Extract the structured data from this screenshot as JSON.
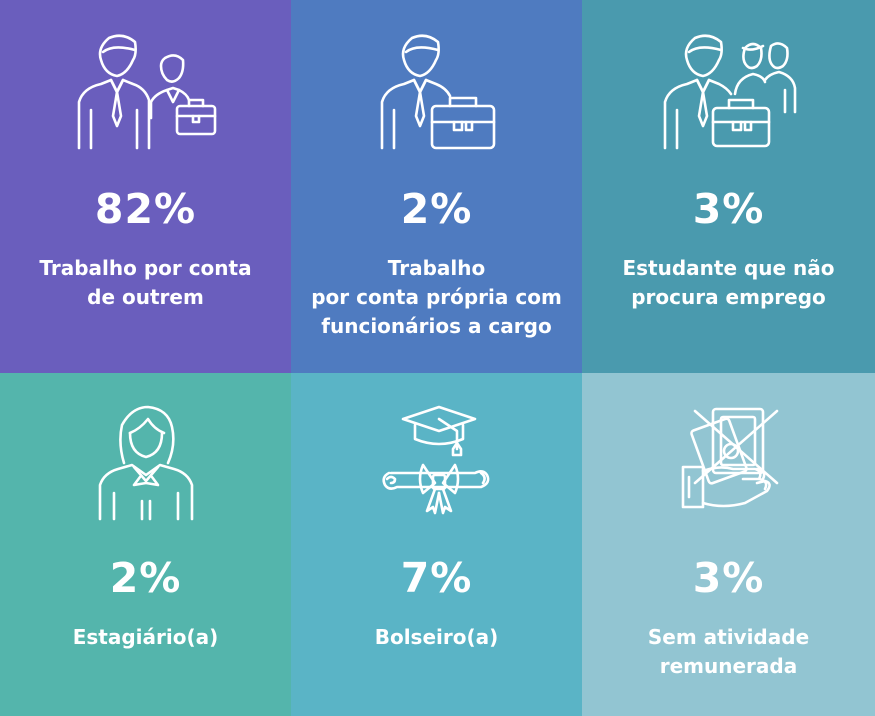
{
  "tiles": [
    {
      "percent": "82%",
      "label": "Trabalho por conta\nde outrem",
      "color": "#6a5ebd",
      "icon": "employee-icon"
    },
    {
      "percent": "2%",
      "label": "Trabalho\npor conta própria com\nfuncionários a cargo",
      "color": "#4f7bc0",
      "icon": "self-employed-icon"
    },
    {
      "percent": "3%",
      "label": "Estudante que não\nprocura emprego",
      "color": "#4a9aae",
      "icon": "student-group-icon"
    },
    {
      "percent": "2%",
      "label": "Estagiário(a)",
      "color": "#54b5ac",
      "icon": "intern-icon"
    },
    {
      "percent": "7%",
      "label": "Bolseiro(a)",
      "color": "#5ab4c6",
      "icon": "graduation-icon"
    },
    {
      "percent": "3%",
      "label": "Sem atividade\nremunerada",
      "color": "#92c5d2",
      "icon": "no-pay-icon"
    }
  ]
}
